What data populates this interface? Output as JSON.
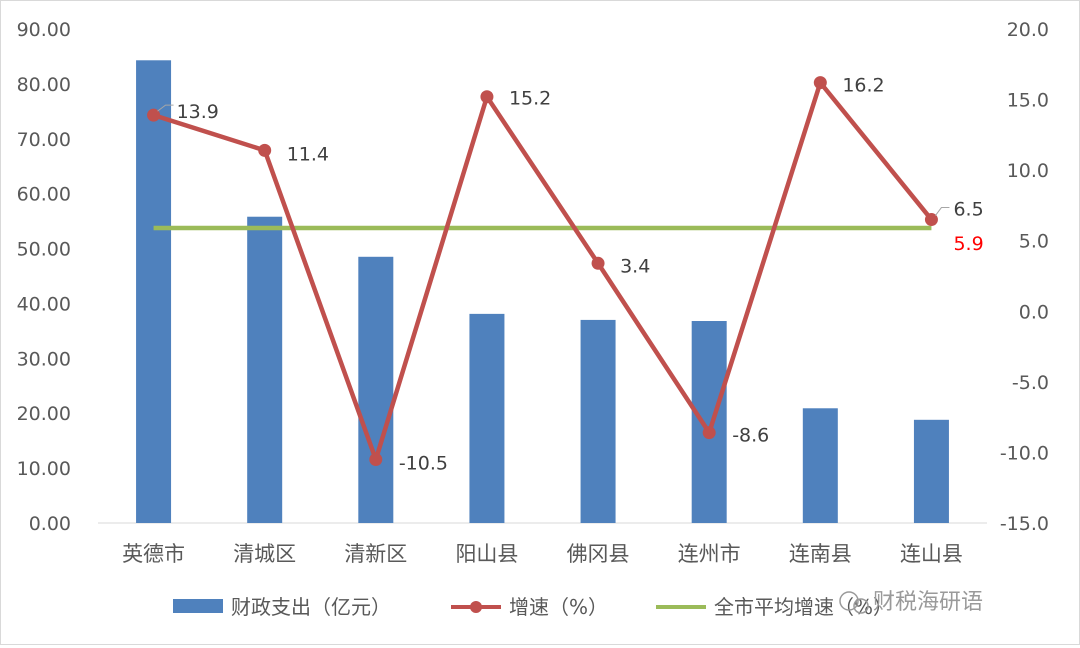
{
  "chart_data": {
    "type": "bar",
    "categories": [
      "英德市",
      "清城区",
      "清新区",
      "阳山县",
      "佛冈县",
      "连州市",
      "连南县",
      "连山县"
    ],
    "series": [
      {
        "name": "财政支出（亿元）",
        "type": "bar",
        "axis": "left",
        "color": "#4f81bd",
        "values": [
          84.3,
          55.8,
          48.5,
          38.1,
          37.0,
          36.8,
          20.9,
          18.8
        ]
      },
      {
        "name": "增速（%）",
        "type": "line",
        "axis": "right",
        "color": "#c0504d",
        "values": [
          13.9,
          11.4,
          -10.5,
          15.2,
          3.4,
          -8.6,
          16.2,
          6.5
        ],
        "labels": [
          "13.9",
          "11.4",
          "-10.5",
          "15.2",
          "3.4",
          "-8.6",
          "16.2",
          "6.5"
        ]
      },
      {
        "name": "全市平均增速（%）",
        "type": "line",
        "axis": "right",
        "color": "#9bbb59",
        "values": [
          5.9,
          5.9,
          5.9,
          5.9,
          5.9,
          5.9,
          5.9,
          5.9
        ],
        "label": "5.9",
        "label_color": "#ff0000"
      }
    ],
    "y_left": {
      "ylim": [
        0,
        90
      ],
      "ticks": [
        "0.00",
        "10.00",
        "20.00",
        "30.00",
        "40.00",
        "50.00",
        "60.00",
        "70.00",
        "80.00",
        "90.00"
      ]
    },
    "y_right": {
      "ylim": [
        -15,
        20
      ],
      "ticks": [
        "-15.0",
        "-10.0",
        "-5.0",
        "0.0",
        "5.0",
        "10.0",
        "15.0",
        "20.0"
      ]
    },
    "grid": false,
    "legend_position": "bottom"
  },
  "watermark": "财税海研语"
}
